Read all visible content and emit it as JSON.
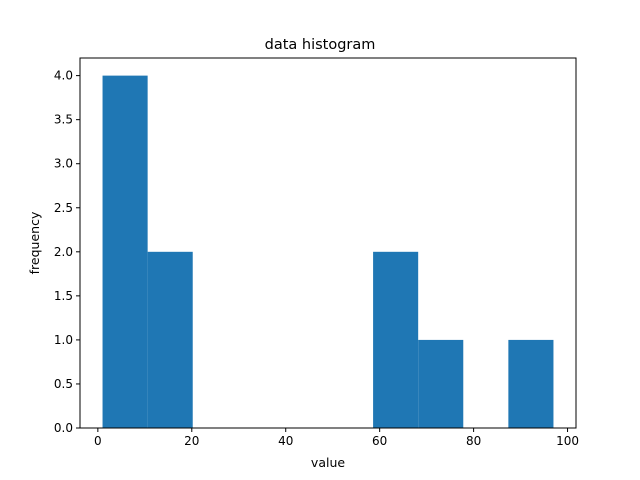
{
  "chart_data": {
    "type": "bar",
    "subtype": "histogram",
    "title": "data histogram",
    "xlabel": "value",
    "ylabel": "frequency",
    "bins": [
      {
        "x0": 1.0,
        "x1": 10.6,
        "count": 4
      },
      {
        "x0": 10.6,
        "x1": 20.2,
        "count": 2
      },
      {
        "x0": 20.2,
        "x1": 29.8,
        "count": 0
      },
      {
        "x0": 29.8,
        "x1": 39.4,
        "count": 0
      },
      {
        "x0": 39.4,
        "x1": 49.0,
        "count": 0
      },
      {
        "x0": 49.0,
        "x1": 58.6,
        "count": 0
      },
      {
        "x0": 58.6,
        "x1": 68.2,
        "count": 2
      },
      {
        "x0": 68.2,
        "x1": 77.8,
        "count": 1
      },
      {
        "x0": 77.8,
        "x1": 87.4,
        "count": 0
      },
      {
        "x0": 87.4,
        "x1": 97.0,
        "count": 1
      }
    ],
    "xlim": [
      -3.8,
      101.8
    ],
    "ylim": [
      0,
      4.2
    ],
    "xticks": [
      0,
      20,
      40,
      60,
      80,
      100
    ],
    "xtick_labels": [
      "0",
      "20",
      "40",
      "60",
      "80",
      "100"
    ],
    "yticks": [
      0,
      0.5,
      1,
      1.5,
      2,
      2.5,
      3,
      3.5,
      4
    ],
    "ytick_labels": [
      "0.0",
      "0.5",
      "1.0",
      "1.5",
      "2.0",
      "2.5",
      "3.0",
      "3.5",
      "4.0"
    ],
    "grid": false,
    "bar_color": "#1f77b4"
  }
}
